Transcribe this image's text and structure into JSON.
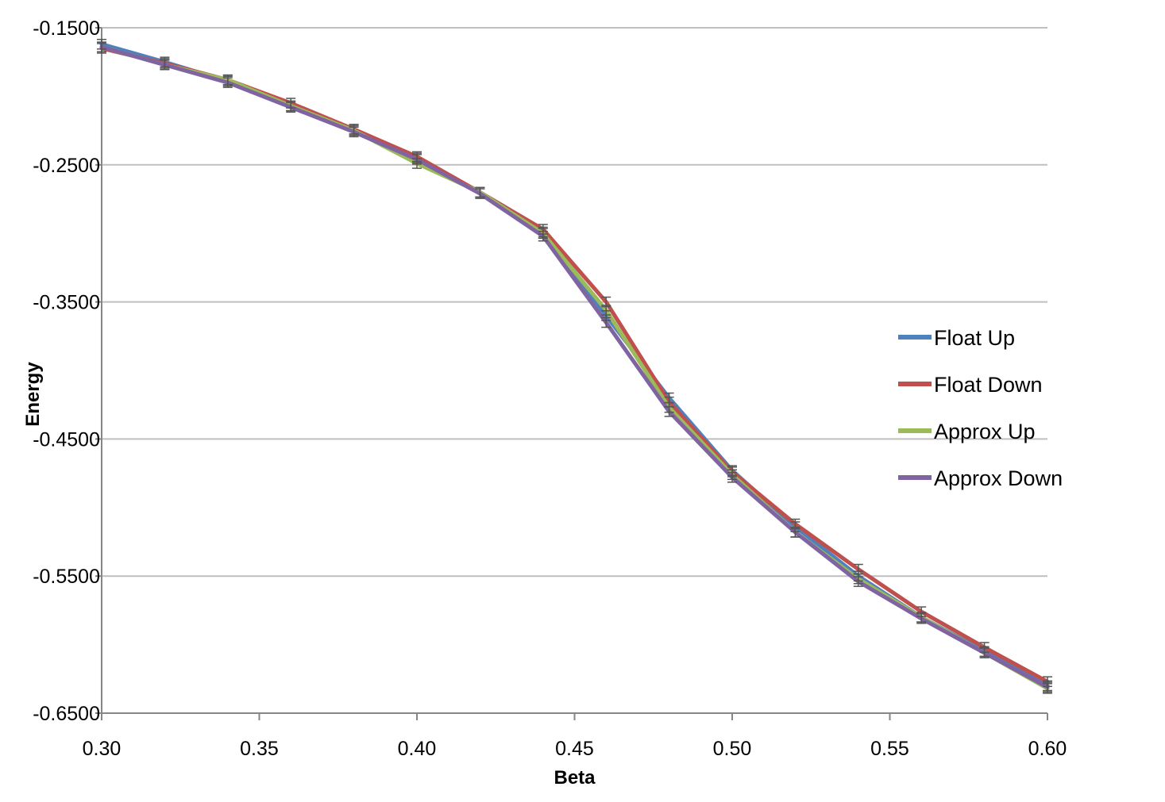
{
  "chart_data": {
    "type": "line",
    "title": "",
    "xlabel": "Beta",
    "ylabel": "Energy",
    "xlim": [
      0.3,
      0.6
    ],
    "ylim": [
      -0.65,
      -0.15
    ],
    "x_ticks": [
      0.3,
      0.35,
      0.4,
      0.45,
      0.5,
      0.55,
      0.6
    ],
    "x_tick_labels": [
      "0.30",
      "0.35",
      "0.40",
      "0.45",
      "0.50",
      "0.55",
      "0.60"
    ],
    "y_ticks": [
      -0.15,
      -0.25,
      -0.35,
      -0.45,
      -0.55,
      -0.65
    ],
    "y_tick_labels": [
      "-0.1500",
      "-0.2500",
      "-0.3500",
      "-0.4500",
      "-0.5500",
      "-0.6500"
    ],
    "grid": "horizontal",
    "legend_position": "right",
    "x": [
      0.3,
      0.32,
      0.34,
      0.36,
      0.38,
      0.4,
      0.42,
      0.44,
      0.46,
      0.48,
      0.5,
      0.52,
      0.54,
      0.56,
      0.58,
      0.6
    ],
    "series": [
      {
        "name": "Float Up",
        "color": "#4f81bd",
        "values": [
          -0.162,
          -0.175,
          -0.189,
          -0.207,
          -0.224,
          -0.245,
          -0.27,
          -0.299,
          -0.36,
          -0.42,
          -0.473,
          -0.514,
          -0.55,
          -0.58,
          -0.605,
          -0.63
        ]
      },
      {
        "name": "Float Down",
        "color": "#c0504d",
        "values": [
          -0.165,
          -0.176,
          -0.188,
          -0.205,
          -0.224,
          -0.244,
          -0.27,
          -0.297,
          -0.35,
          -0.423,
          -0.474,
          -0.512,
          -0.545,
          -0.576,
          -0.602,
          -0.627
        ]
      },
      {
        "name": "Approx Up",
        "color": "#9bbb59",
        "values": [
          -0.164,
          -0.177,
          -0.188,
          -0.207,
          -0.225,
          -0.249,
          -0.27,
          -0.3,
          -0.356,
          -0.427,
          -0.476,
          -0.518,
          -0.552,
          -0.58,
          -0.606,
          -0.632
        ]
      },
      {
        "name": "Approx Down",
        "color": "#8064a2",
        "values": [
          -0.164,
          -0.177,
          -0.19,
          -0.208,
          -0.226,
          -0.246,
          -0.271,
          -0.302,
          -0.365,
          -0.43,
          -0.478,
          -0.518,
          -0.554,
          -0.581,
          -0.606,
          -0.631
        ]
      }
    ]
  }
}
